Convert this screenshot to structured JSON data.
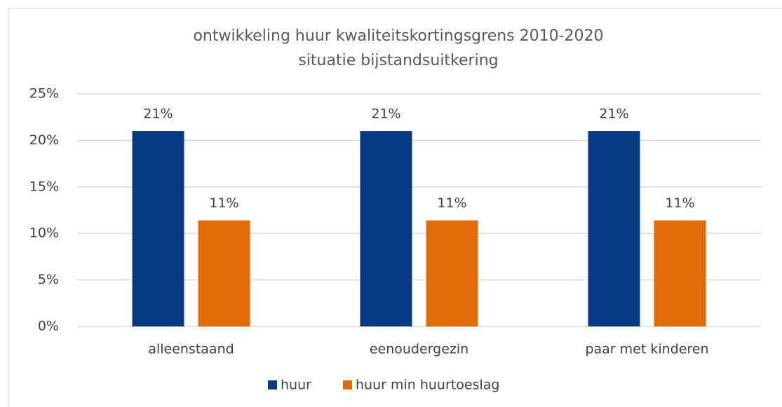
{
  "chart_data": {
    "type": "bar",
    "title": "ontwikkeling huur kwaliteitskortingsgrens 2010-2020",
    "subtitle": "situatie bijstandsuitkering",
    "categories": [
      "alleenstaand",
      "eenoudergezin",
      "paar met kinderen"
    ],
    "series": [
      {
        "name": "huur",
        "color": "#073984",
        "values": [
          21,
          21,
          21
        ],
        "value_labels": [
          "21%",
          "21%",
          "21%"
        ]
      },
      {
        "name": "huur min huurtoeslag",
        "color": "#e36c09",
        "values": [
          11.4,
          11.4,
          11.4
        ],
        "value_labels": [
          "11%",
          "11%",
          "11%"
        ]
      }
    ],
    "ylim": [
      0,
      25
    ],
    "yticks": [
      {
        "value": 0,
        "label": "0%"
      },
      {
        "value": 5,
        "label": "5%"
      },
      {
        "value": 10,
        "label": "10%"
      },
      {
        "value": 15,
        "label": "15%"
      },
      {
        "value": 20,
        "label": "20%"
      },
      {
        "value": 25,
        "label": "25%"
      }
    ],
    "grid": true,
    "legend": "bottom"
  }
}
